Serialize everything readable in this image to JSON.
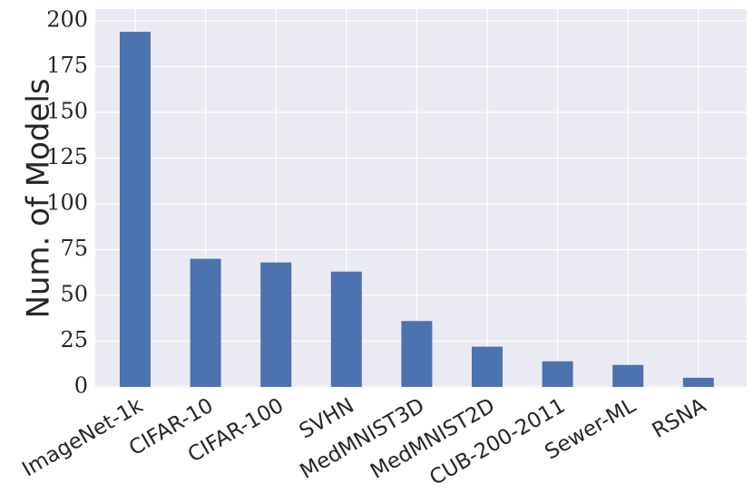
{
  "chart_data": {
    "type": "bar",
    "categories": [
      "ImageNet-1k",
      "CIFAR-10",
      "CIFAR-100",
      "SVHN",
      "MedMNIST3D",
      "MedMNIST2D",
      "CUB-200-2011",
      "Sewer-ML",
      "RSNA"
    ],
    "values": [
      194,
      70,
      68,
      63,
      36,
      22,
      14,
      12,
      5
    ],
    "title": "",
    "xlabel": "",
    "ylabel": "Num. of Models",
    "ylim": [
      0,
      200
    ],
    "yticks": [
      0,
      25,
      50,
      75,
      100,
      125,
      150,
      175,
      200
    ],
    "grid": true,
    "colors": {
      "bar": "#4c72b0",
      "background": "#eaeaf2",
      "grid": "#ffffff"
    }
  }
}
